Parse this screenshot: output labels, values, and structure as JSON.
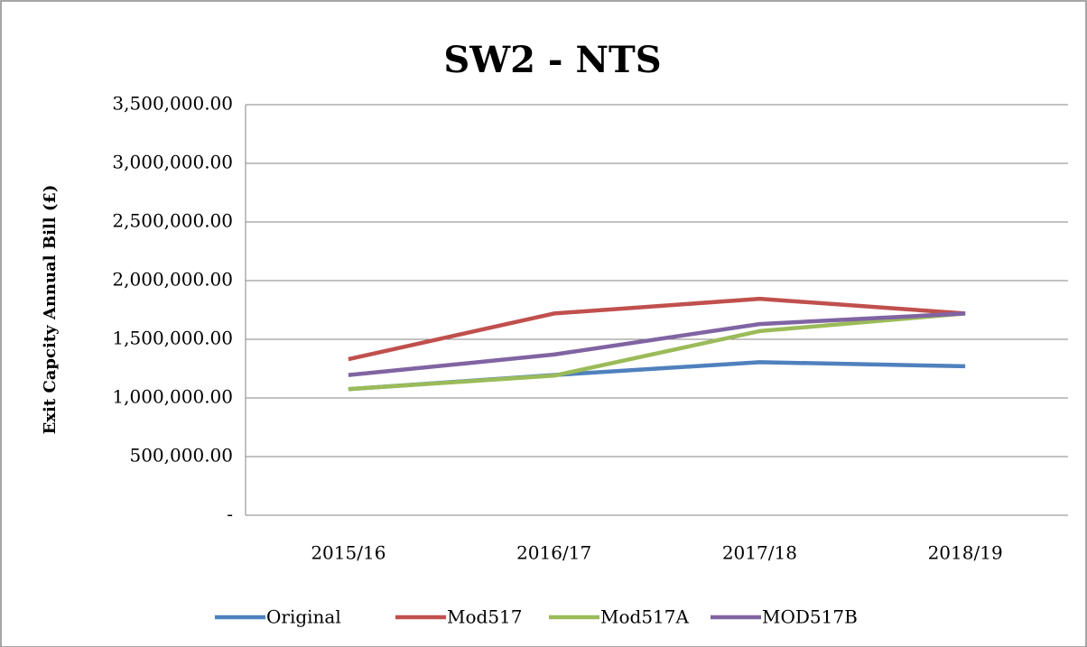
{
  "chart_data": {
    "type": "line",
    "title": "SW2 - NTS",
    "y_label": "Exit Capcity Annual Bill (£)",
    "categories": [
      "2015/16",
      "2016/17",
      "2017/18",
      "2018/19"
    ],
    "series": [
      {
        "name": "Original",
        "color": "#4f81bd",
        "values": [
          1075000,
          1195000,
          1305000,
          1270000
        ]
      },
      {
        "name": "Mod517",
        "color": "#c0504d",
        "values": [
          1330000,
          1720000,
          1845000,
          1720000
        ]
      },
      {
        "name": "Mod517A",
        "color": "#9bbb59",
        "values": [
          1075000,
          1190000,
          1570000,
          1720000
        ]
      },
      {
        "name": "MOD517B",
        "color": "#8064a2",
        "values": [
          1195000,
          1370000,
          1630000,
          1720000
        ]
      }
    ],
    "ylim": [
      0,
      3500000
    ],
    "yticks": [
      {
        "value": 0,
        "label": "-"
      },
      {
        "value": 500000,
        "label": "500,000.00"
      },
      {
        "value": 1000000,
        "label": "1,000,000.00"
      },
      {
        "value": 1500000,
        "label": "1,500,000.00"
      },
      {
        "value": 2000000,
        "label": "2,000,000.00"
      },
      {
        "value": 2500000,
        "label": "2,500,000.00"
      },
      {
        "value": 3000000,
        "label": "3,000,000.00"
      },
      {
        "value": 3500000,
        "label": "3,500,000.00"
      }
    ],
    "grid": true,
    "legend": "bottom"
  }
}
